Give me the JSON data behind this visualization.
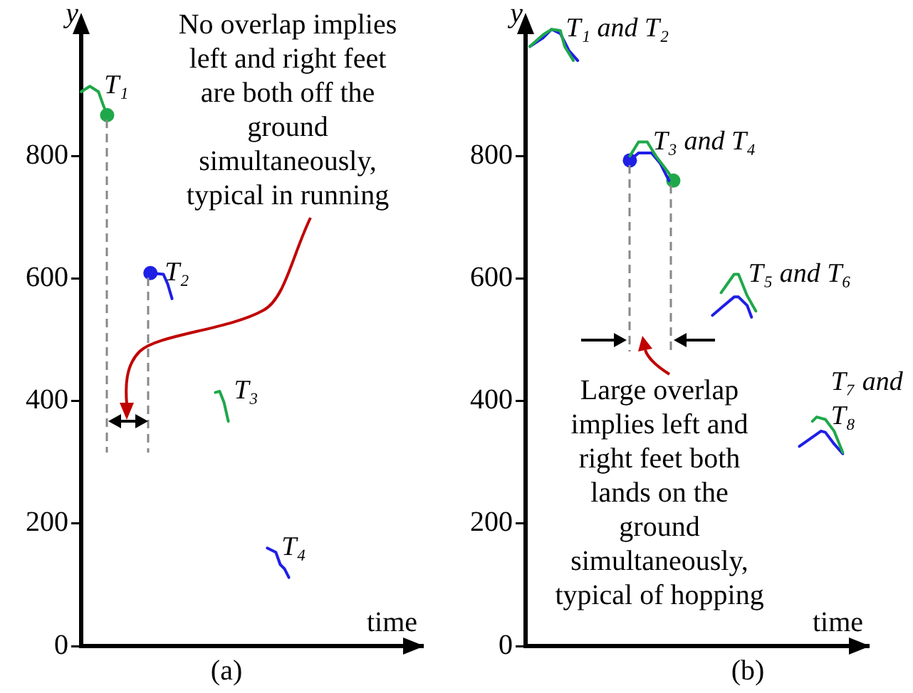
{
  "chart_data": [
    {
      "type": "line",
      "title": "(a)",
      "xlabel": "time",
      "ylabel": "y",
      "marker": "none",
      "tick_labels": "y",
      "ylim": [
        0,
        1020
      ],
      "yticks": [
        0,
        200,
        400,
        600,
        800
      ],
      "annotations": [
        "No overlap implies left and right feet are both off the ground simultaneously, typical in running"
      ],
      "categories": [
        null,
        null,
        null,
        null,
        null,
        null,
        null,
        null,
        null,
        null,
        null,
        null,
        null,
        null,
        null,
        null,
        null,
        null,
        null,
        null,
        null,
        null,
        null,
        null,
        null,
        null,
        null,
        null,
        null,
        null,
        null,
        null,
        null,
        null,
        null,
        null,
        null,
        null,
        null,
        null,
        null,
        null,
        null,
        null,
        null,
        null,
        null,
        null,
        null,
        null,
        null,
        null,
        null,
        null,
        null,
        null,
        null,
        null,
        null,
        null,
        null,
        null,
        null,
        null,
        null,
        null,
        null,
        null,
        null,
        null,
        null,
        null,
        null,
        null,
        null,
        null,
        null,
        null,
        null,
        null
      ],
      "series": [
        {
          "name": "T₁",
          "type": "line",
          "color": "#1fa84a",
          "values": [
            905,
            null,
            914,
            null,
            905,
            885,
            867,
            null,
            null,
            null,
            null,
            null,
            null,
            null,
            null,
            null,
            null,
            null,
            null,
            null,
            null,
            null,
            null,
            null,
            null,
            null,
            null,
            null,
            null,
            null,
            null,
            null,
            null,
            null,
            null,
            null,
            null,
            null,
            null,
            null,
            null,
            null,
            null,
            null,
            null,
            null,
            null,
            null,
            null,
            null,
            null,
            null,
            null,
            null,
            null,
            null,
            null,
            null,
            null,
            null,
            null,
            null,
            null,
            null,
            null,
            null,
            null,
            null,
            null,
            null,
            null,
            null,
            null,
            null,
            null,
            null,
            null,
            null,
            null,
            null
          ]
        },
        {
          "type": "scatter",
          "marker": "circle",
          "color": "#1fa84a",
          "values": [
            null,
            null,
            null,
            null,
            null,
            null,
            867,
            null,
            null,
            null,
            null,
            null,
            null,
            null,
            null,
            null,
            null,
            null,
            null,
            null,
            null,
            null,
            null,
            null,
            null,
            null,
            null,
            null,
            null,
            null,
            null,
            null,
            null,
            null,
            null,
            null,
            null,
            null,
            null,
            null,
            null,
            null,
            null,
            null,
            null,
            null,
            null,
            null,
            null,
            null,
            null,
            null,
            null,
            null,
            null,
            null,
            null,
            null,
            null,
            null,
            null,
            null,
            null,
            null,
            null,
            null,
            null,
            null,
            null,
            null,
            null,
            null,
            null,
            null,
            null,
            null,
            null,
            null,
            null,
            null
          ]
        },
        {
          "name": "T₂",
          "type": "line",
          "color": "#1f1fe6",
          "values": [
            null,
            null,
            null,
            null,
            null,
            null,
            null,
            null,
            null,
            null,
            null,
            null,
            null,
            null,
            null,
            null,
            609,
            null,
            null,
            607,
            591,
            567,
            null,
            null,
            null,
            null,
            null,
            null,
            null,
            null,
            null,
            null,
            null,
            null,
            null,
            null,
            null,
            null,
            null,
            null,
            null,
            null,
            null,
            null,
            null,
            null,
            null,
            null,
            null,
            null,
            null,
            null,
            null,
            null,
            null,
            null,
            null,
            null,
            null,
            null,
            null,
            null,
            null,
            null,
            null,
            null,
            null,
            null,
            null,
            null,
            null,
            null,
            null,
            null,
            null,
            null,
            null,
            null,
            null,
            null
          ]
        },
        {
          "type": "scatter",
          "marker": "circle",
          "color": "#1f1fe6",
          "values": [
            null,
            null,
            null,
            null,
            null,
            null,
            null,
            null,
            null,
            null,
            null,
            null,
            null,
            null,
            null,
            null,
            609,
            null,
            null,
            null,
            null,
            null,
            null,
            null,
            null,
            null,
            null,
            null,
            null,
            null,
            null,
            null,
            null,
            null,
            null,
            null,
            null,
            null,
            null,
            null,
            null,
            null,
            null,
            null,
            null,
            null,
            null,
            null,
            null,
            null,
            null,
            null,
            null,
            null,
            null,
            null,
            null,
            null,
            null,
            null,
            null,
            null,
            null,
            null,
            null,
            null,
            null,
            null,
            null,
            null,
            null,
            null,
            null,
            null,
            null,
            null,
            null,
            null,
            null,
            null
          ]
        },
        {
          "name": "T₃",
          "type": "line",
          "color": "#1fa84a",
          "values": [
            null,
            null,
            null,
            null,
            null,
            null,
            null,
            null,
            null,
            null,
            null,
            null,
            null,
            null,
            null,
            null,
            null,
            null,
            null,
            null,
            null,
            null,
            null,
            null,
            null,
            null,
            null,
            null,
            null,
            null,
            null,
            414,
            416,
            398,
            367,
            null,
            null,
            null,
            null,
            null,
            null,
            null,
            null,
            null,
            null,
            null,
            null,
            null,
            null,
            null,
            null,
            null,
            null,
            null,
            null,
            null,
            null,
            null,
            null,
            null,
            null,
            null,
            null,
            null,
            null,
            null,
            null,
            null,
            null,
            null,
            null,
            null,
            null,
            null,
            null,
            null,
            null,
            null,
            null,
            null
          ]
        },
        {
          "name": "T₄",
          "type": "line",
          "color": "#1f1fe6",
          "values": [
            null,
            null,
            null,
            null,
            null,
            null,
            null,
            null,
            null,
            null,
            null,
            null,
            null,
            null,
            null,
            null,
            null,
            null,
            null,
            null,
            null,
            null,
            null,
            null,
            null,
            null,
            null,
            null,
            null,
            null,
            null,
            null,
            null,
            null,
            null,
            null,
            null,
            null,
            null,
            null,
            null,
            null,
            null,
            160,
            null,
            153,
            133,
            126,
            112,
            null,
            null,
            null,
            null,
            null,
            null,
            null,
            null,
            null,
            null,
            null,
            null,
            null,
            null,
            null,
            null,
            null,
            null,
            null,
            null,
            null,
            null,
            null,
            null,
            null,
            null,
            null,
            null,
            null,
            null,
            null
          ]
        }
      ]
    },
    {
      "type": "line",
      "title": "(b)",
      "xlabel": "time",
      "ylabel": "y",
      "marker": "none",
      "tick_labels": "y",
      "ylim": [
        0,
        1020
      ],
      "yticks": [
        0,
        200,
        400,
        600,
        800
      ],
      "annotations": [
        "Large overlap implies left and right feet both lands on the ground simultaneously, typical of hopping"
      ],
      "categories": [
        null,
        null,
        null,
        null,
        null,
        null,
        null,
        null,
        null,
        null,
        null,
        null,
        null,
        null,
        null,
        null,
        null,
        null,
        null,
        null,
        null,
        null,
        null,
        null,
        null,
        null,
        null,
        null,
        null,
        null,
        null,
        null,
        null,
        null,
        null,
        null,
        null,
        null,
        null,
        null,
        null,
        null,
        null,
        null,
        null,
        null,
        null,
        null,
        null,
        null,
        null,
        null,
        null,
        null,
        null,
        null,
        null,
        null,
        null,
        null,
        null,
        null,
        null,
        null,
        null,
        null,
        null,
        null,
        null,
        null,
        null,
        null,
        null,
        null,
        null,
        null,
        null,
        null,
        null,
        null
      ],
      "series": [
        {
          "name": "T₁ and T₂",
          "type": "line",
          "color": "#1fa84a",
          "values": [
            null,
            979,
            null,
            null,
            998,
            null,
            1007,
            null,
            1005,
            979,
            null,
            956,
            null,
            null,
            null,
            null,
            null,
            null,
            null,
            null,
            null,
            null,
            null,
            null,
            null,
            null,
            null,
            null,
            null,
            null,
            null,
            null,
            null,
            null,
            null,
            null,
            null,
            null,
            null,
            null,
            null,
            null,
            null,
            null,
            null,
            null,
            null,
            null,
            null,
            null,
            null,
            null,
            null,
            null,
            null,
            null,
            null,
            null,
            null,
            null,
            null,
            null,
            null,
            null,
            null,
            null,
            null,
            null,
            null,
            null,
            null,
            null,
            null,
            null,
            null,
            null,
            null,
            null,
            null,
            null
          ]
        },
        {
          "type": "line",
          "color": "#1f1fe6",
          "values": [
            null,
            979,
            null,
            null,
            993,
            null,
            1007,
            null,
            1000,
            null,
            972,
            null,
            956,
            null,
            null,
            null,
            null,
            null,
            null,
            null,
            null,
            null,
            null,
            null,
            null,
            null,
            null,
            null,
            null,
            null,
            null,
            null,
            null,
            null,
            null,
            null,
            null,
            null,
            null,
            null,
            null,
            null,
            null,
            null,
            null,
            null,
            null,
            null,
            null,
            null,
            null,
            null,
            null,
            null,
            null,
            null,
            null,
            null,
            null,
            null,
            null,
            null,
            null,
            null,
            null,
            null,
            null,
            null,
            null,
            null,
            null,
            null,
            null,
            null,
            null,
            null,
            null,
            null,
            null,
            null
          ]
        },
        {
          "name": "T₃ and T₄",
          "type": "line",
          "color": "#1fa84a",
          "values": [
            null,
            null,
            null,
            null,
            null,
            null,
            null,
            null,
            null,
            null,
            null,
            null,
            null,
            null,
            null,
            null,
            null,
            null,
            null,
            null,
            null,
            null,
            null,
            null,
            800,
            null,
            823,
            null,
            823,
            null,
            800,
            null,
            null,
            772,
            760,
            null,
            null,
            null,
            null,
            null,
            null,
            null,
            null,
            null,
            null,
            null,
            null,
            null,
            null,
            null,
            null,
            null,
            null,
            null,
            null,
            null,
            null,
            null,
            null,
            null,
            null,
            null,
            null,
            null,
            null,
            null,
            null,
            null,
            null,
            null,
            null,
            null,
            null,
            null,
            null,
            null,
            null,
            null,
            null,
            null
          ]
        },
        {
          "type": "line",
          "color": "#1f1fe6",
          "values": [
            null,
            null,
            null,
            null,
            null,
            null,
            null,
            null,
            null,
            null,
            null,
            null,
            null,
            null,
            null,
            null,
            null,
            null,
            null,
            null,
            null,
            null,
            null,
            null,
            793,
            null,
            805,
            null,
            null,
            805,
            null,
            788,
            null,
            760,
            null,
            null,
            null,
            null,
            null,
            null,
            null,
            null,
            null,
            null,
            null,
            null,
            null,
            null,
            null,
            null,
            null,
            null,
            null,
            null,
            null,
            null,
            null,
            null,
            null,
            null,
            null,
            null,
            null,
            null,
            null,
            null,
            null,
            null,
            null,
            null,
            null,
            null,
            null,
            null,
            null,
            null,
            null,
            null,
            null,
            null
          ]
        },
        {
          "type": "scatter",
          "marker": "circle",
          "color": "#1f1fe6",
          "values": [
            null,
            null,
            null,
            null,
            null,
            null,
            null,
            null,
            null,
            null,
            null,
            null,
            null,
            null,
            null,
            null,
            null,
            null,
            null,
            null,
            null,
            null,
            null,
            null,
            793,
            null,
            null,
            null,
            null,
            null,
            null,
            null,
            null,
            null,
            null,
            null,
            null,
            null,
            null,
            null,
            null,
            null,
            null,
            null,
            null,
            null,
            null,
            null,
            null,
            null,
            null,
            null,
            null,
            null,
            null,
            null,
            null,
            null,
            null,
            null,
            null,
            null,
            null,
            null,
            null,
            null,
            null,
            null,
            null,
            null,
            null,
            null,
            null,
            null,
            null,
            null,
            null,
            null,
            null,
            null
          ]
        },
        {
          "type": "scatter",
          "marker": "circle",
          "color": "#1fa84a",
          "values": [
            null,
            null,
            null,
            null,
            null,
            null,
            null,
            null,
            null,
            null,
            null,
            null,
            null,
            null,
            null,
            null,
            null,
            null,
            null,
            null,
            null,
            null,
            null,
            null,
            null,
            null,
            null,
            null,
            null,
            null,
            null,
            null,
            null,
            null,
            760,
            null,
            null,
            null,
            null,
            null,
            null,
            null,
            null,
            null,
            null,
            null,
            null,
            null,
            null,
            null,
            null,
            null,
            null,
            null,
            null,
            null,
            null,
            null,
            null,
            null,
            null,
            null,
            null,
            null,
            null,
            null,
            null,
            null,
            null,
            null,
            null,
            null,
            null,
            null,
            null,
            null,
            null,
            null,
            null,
            null
          ]
        },
        {
          "name": "T₅ and T₆",
          "type": "line",
          "color": "#1fa84a",
          "values": [
            null,
            null,
            null,
            null,
            null,
            null,
            null,
            null,
            null,
            null,
            null,
            null,
            null,
            null,
            null,
            null,
            null,
            null,
            null,
            null,
            null,
            null,
            null,
            null,
            null,
            null,
            null,
            null,
            null,
            null,
            null,
            null,
            null,
            null,
            null,
            null,
            null,
            null,
            null,
            null,
            null,
            null,
            null,
            null,
            null,
            577,
            null,
            null,
            607,
            607,
            null,
            572,
            null,
            547,
            null,
            null,
            null,
            null,
            null,
            null,
            null,
            null,
            null,
            null,
            null,
            null,
            null,
            null,
            null,
            null,
            null,
            null,
            null,
            null,
            null,
            null,
            null,
            null,
            null,
            null
          ]
        },
        {
          "type": "line",
          "color": "#1f1fe6",
          "values": [
            null,
            null,
            null,
            null,
            null,
            null,
            null,
            null,
            null,
            null,
            null,
            null,
            null,
            null,
            null,
            null,
            null,
            null,
            null,
            null,
            null,
            null,
            null,
            null,
            null,
            null,
            null,
            null,
            null,
            null,
            null,
            null,
            null,
            null,
            null,
            null,
            null,
            null,
            null,
            null,
            null,
            null,
            null,
            540,
            null,
            null,
            null,
            null,
            570,
            570,
            null,
            556,
            537,
            null,
            null,
            null,
            null,
            null,
            null,
            null,
            null,
            null,
            null,
            null,
            null,
            null,
            null,
            null,
            null,
            null,
            null,
            null,
            null,
            null,
            null,
            null,
            null,
            null,
            null,
            null
          ]
        },
        {
          "name": "T₇ and T₈",
          "type": "line",
          "color": "#1fa84a",
          "values": [
            null,
            null,
            null,
            null,
            null,
            null,
            null,
            null,
            null,
            null,
            null,
            null,
            null,
            null,
            null,
            null,
            null,
            null,
            null,
            null,
            null,
            null,
            null,
            null,
            null,
            null,
            null,
            null,
            null,
            null,
            null,
            null,
            null,
            null,
            null,
            null,
            null,
            null,
            null,
            null,
            null,
            null,
            null,
            null,
            null,
            null,
            null,
            null,
            null,
            null,
            null,
            null,
            null,
            null,
            null,
            null,
            null,
            null,
            null,
            null,
            null,
            null,
            null,
            null,
            null,
            null,
            367,
            374,
            null,
            370,
            null,
            351,
            null,
            316,
            null,
            null,
            null,
            null,
            null,
            null
          ]
        },
        {
          "type": "line",
          "color": "#1f1fe6",
          "values": [
            null,
            null,
            null,
            null,
            null,
            null,
            null,
            null,
            null,
            null,
            null,
            null,
            null,
            null,
            null,
            null,
            null,
            null,
            null,
            null,
            null,
            null,
            null,
            null,
            null,
            null,
            null,
            null,
            null,
            null,
            null,
            null,
            null,
            null,
            null,
            null,
            null,
            null,
            null,
            null,
            null,
            null,
            null,
            null,
            null,
            null,
            null,
            null,
            null,
            null,
            null,
            null,
            null,
            null,
            null,
            null,
            null,
            null,
            null,
            null,
            null,
            null,
            null,
            326,
            null,
            null,
            null,
            null,
            351,
            349,
            null,
            330,
            null,
            314,
            null,
            null,
            null,
            null,
            null,
            null
          ]
        }
      ]
    }
  ]
}
